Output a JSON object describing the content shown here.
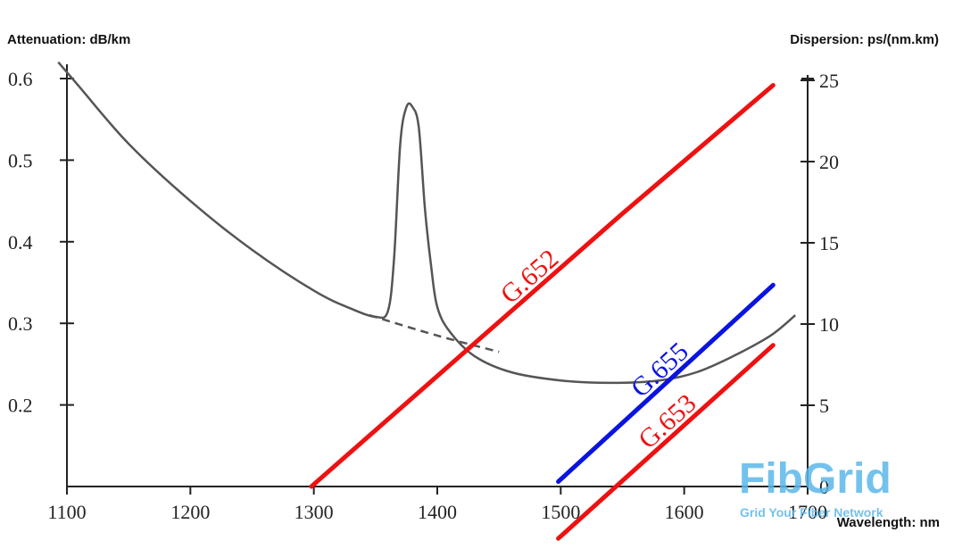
{
  "chart_data": {
    "type": "line",
    "y_left_title": "Attenuation: dB/km",
    "y_right_title": "Dispersion: ps/(nm.km)",
    "x_title": "Wavelength: nm",
    "x_ticks": [
      1100,
      1200,
      1300,
      1400,
      1500,
      1600,
      1700
    ],
    "x_tick_labels": [
      "1100",
      "1200",
      "1300",
      "1400",
      "1500",
      "1600",
      "1700"
    ],
    "y_left_ticks": [
      0.2,
      0.3,
      0.4,
      0.5,
      0.6
    ],
    "y_left_tick_labels": [
      "0.2",
      "0.3",
      "0.4",
      "0.5",
      "0.6"
    ],
    "y_right_ticks": [
      0,
      5,
      10,
      15,
      20,
      25
    ],
    "y_right_tick_labels": [
      "0",
      "5",
      "10",
      "15",
      "20",
      "25"
    ],
    "xlim": [
      1100,
      1700
    ],
    "ylim_left": [
      0.1,
      0.6
    ],
    "ylim_right": [
      0,
      25
    ],
    "attenuation": {
      "color": "#555555",
      "x": [
        1093,
        1110,
        1150,
        1200,
        1250,
        1300,
        1330,
        1350,
        1360,
        1365,
        1370,
        1375,
        1380,
        1385,
        1390,
        1395,
        1400,
        1410,
        1430,
        1460,
        1500,
        1540,
        1580,
        1610,
        1640,
        1670,
        1690
      ],
      "y": [
        0.62,
        0.59,
        0.52,
        0.45,
        0.39,
        0.34,
        0.318,
        0.308,
        0.315,
        0.38,
        0.52,
        0.565,
        0.565,
        0.54,
        0.44,
        0.37,
        0.32,
        0.29,
        0.26,
        0.24,
        0.23,
        0.227,
        0.23,
        0.24,
        0.26,
        0.285,
        0.31
      ]
    },
    "attenuation_dashed": {
      "color": "#555555",
      "x": [
        1345,
        1400,
        1450
      ],
      "y": [
        0.31,
        0.285,
        0.265
      ]
    },
    "series": [
      {
        "name": "G.652",
        "color": "#ee1111",
        "x": [
          1298,
          1550,
          1672
        ],
        "y": [
          0,
          16.8,
          24.7
        ]
      },
      {
        "name": "G.655",
        "color": "#0a14e0",
        "x": [
          1498,
          1672
        ],
        "y": [
          0.3,
          12.4
        ]
      },
      {
        "name": "G.653",
        "color": "#ee1111",
        "x": [
          1498,
          1672
        ],
        "y": [
          -3.2,
          8.7
        ]
      }
    ]
  },
  "watermark": {
    "brand": "FibGrid",
    "tagline": "Grid Your Fiber Network"
  }
}
